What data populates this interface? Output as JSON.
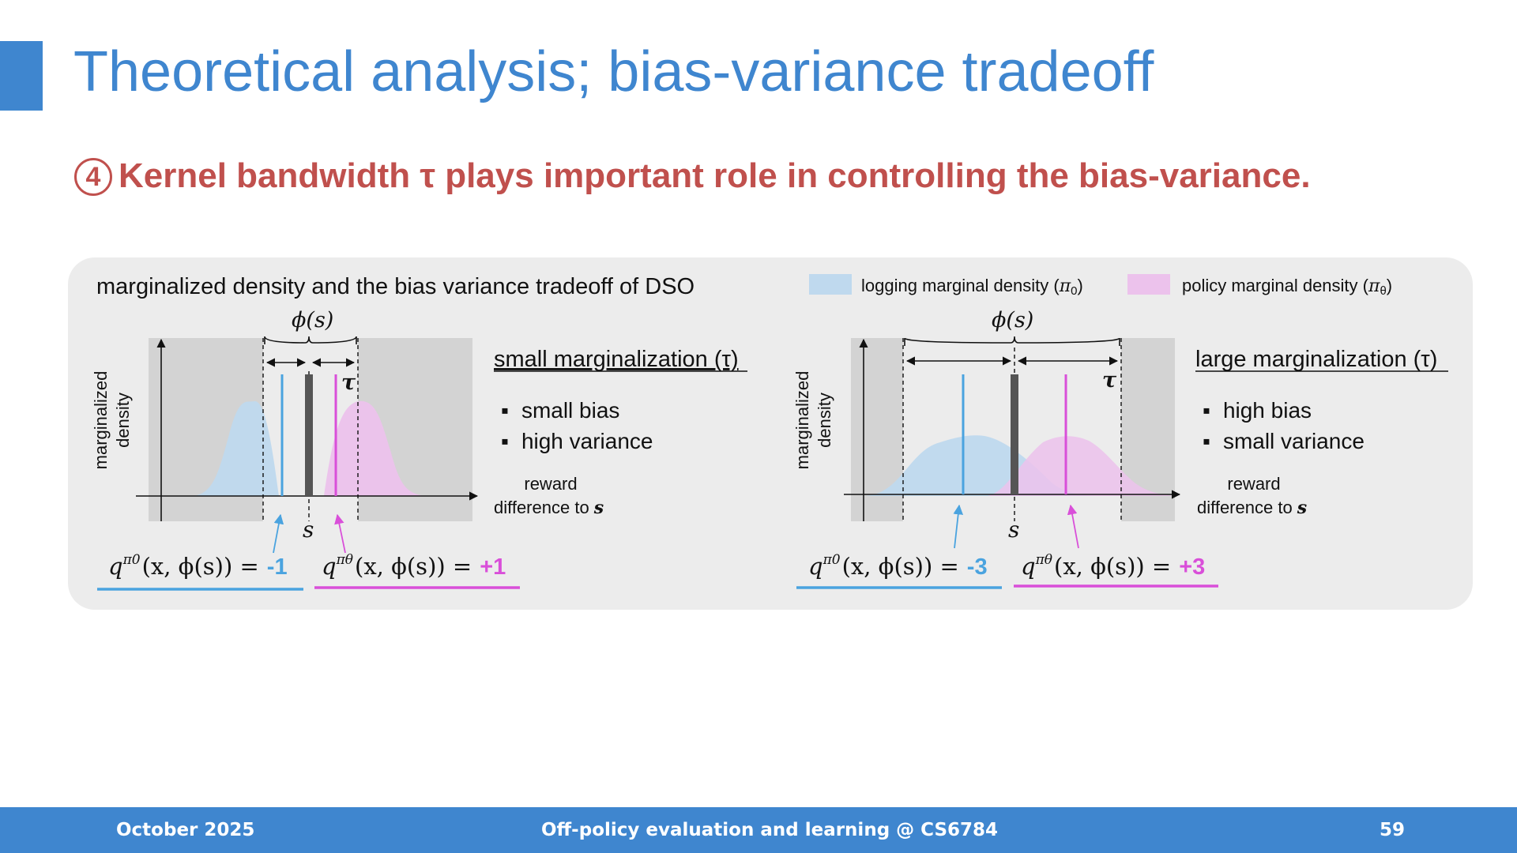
{
  "slide": {
    "title": "Theoretical analysis; bias-variance tradeoff",
    "subtitle_number": "4",
    "subtitle_text": "Kernel bandwidth τ plays important role in controlling the bias-variance."
  },
  "figure": {
    "caption": "marginalized density and the bias variance tradeoff of DSO",
    "legend": {
      "logging_label": "logging marginal density (",
      "logging_symbol": "π",
      "logging_sub": "0",
      "policy_label": "policy marginal density (",
      "policy_symbol": "π",
      "policy_sub": "θ",
      "close_paren": ")",
      "logging_color": "#bfd9ee",
      "policy_color": "#ecc2ec"
    },
    "y_label_line1": "marginalized",
    "y_label_line2": "density",
    "x_label_line1": "reward",
    "x_label_line2": "difference to",
    "x_label_var": "s",
    "phi_label": "ϕ(s)",
    "s_label": "s",
    "tau_label": "τ",
    "left": {
      "heading": "small marginalization (τ)",
      "bullets": [
        "small bias",
        "high variance"
      ],
      "q0_value": "-1",
      "qtheta_value": "+1"
    },
    "right": {
      "heading": "large marginalization (τ)",
      "bullets": [
        "high bias",
        "small variance"
      ],
      "q0_value": "-3",
      "qtheta_value": "+3"
    },
    "q0_formula": "q",
    "q0_sup": "π0",
    "qtheta_sup": "πθ",
    "formula_args": "(x, ϕ(s)) =",
    "logging_line_color": "#4aa3df",
    "policy_line_color": "#d94fd9"
  },
  "footer": {
    "date": "October 2025",
    "course": "Off-policy evaluation and learning @ CS6784",
    "page": "59"
  }
}
